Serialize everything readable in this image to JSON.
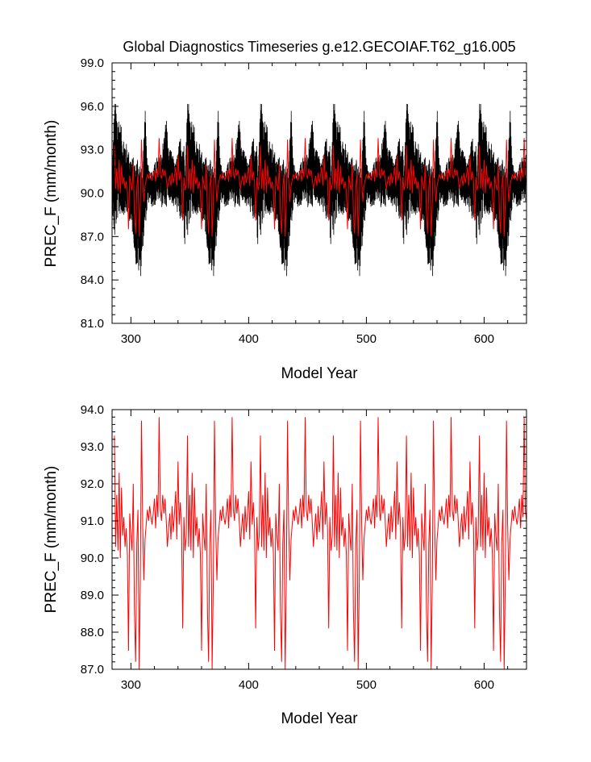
{
  "figure_title": "Global Diagnostics Timeseries g.e12.GECOIAF.T62_g16.005",
  "chart_data": [
    {
      "type": "line",
      "title": "Global Diagnostics Timeseries g.e12.GECOIAF.T62_g16.005",
      "xlabel": "Model Year",
      "ylabel": "PREC_F (mm/month)",
      "xlim": [
        284,
        636
      ],
      "ylim": [
        81.0,
        99.0
      ],
      "xticks": [
        300,
        400,
        500,
        600
      ],
      "xtick_labels": [
        "300",
        "400",
        "500",
        "600"
      ],
      "yticks": [
        81.0,
        84.0,
        87.0,
        90.0,
        93.0,
        96.0,
        99.0
      ],
      "ytick_labels": [
        "81.0",
        "84.0",
        "87.0",
        "90.0",
        "93.0",
        "96.0",
        "99.0"
      ],
      "grid": false,
      "cycle_years": 62,
      "series": [
        {
          "color": "#000000",
          "resolution": "monthly",
          "x": [
            284,
            286,
            288,
            290,
            292,
            294,
            296,
            298,
            300,
            302,
            304,
            306,
            308,
            310,
            312,
            314,
            316,
            318,
            320,
            322,
            324,
            326,
            328,
            330,
            332,
            334,
            336,
            338,
            340,
            342,
            344,
            346
          ],
          "upper": [
            91.5,
            96.5,
            96.0,
            95.5,
            94.5,
            94.0,
            93.5,
            93.0,
            92.5,
            92.5,
            92.0,
            93.0,
            92.0,
            91.5,
            96.0,
            92.5,
            91.5,
            91.5,
            92.0,
            92.5,
            92.5,
            93.0,
            94.0,
            95.5,
            93.0,
            93.0,
            92.5,
            92.0,
            93.0,
            94.0,
            94.0,
            93.0
          ],
          "lower": [
            89.0,
            86.5,
            88.0,
            88.5,
            88.5,
            88.5,
            88.5,
            88.5,
            87.5,
            87.0,
            85.0,
            84.5,
            84.0,
            86.0,
            87.5,
            89.0,
            89.5,
            89.0,
            89.0,
            89.5,
            89.5,
            89.0,
            89.0,
            89.0,
            89.5,
            89.5,
            89.0,
            89.0,
            88.5,
            88.0,
            88.0,
            86.0
          ],
          "mean": [
            90.3,
            91.4,
            91.2,
            91.0,
            90.9,
            90.8,
            90.7,
            90.6,
            90.3,
            90.0,
            89.4,
            89.0,
            88.6,
            89.2,
            90.4,
            90.6,
            90.6,
            90.5,
            90.6,
            90.8,
            90.8,
            90.9,
            91.2,
            91.5,
            91.2,
            91.1,
            90.9,
            90.8,
            90.8,
            90.9,
            91.0,
            90.1
          ]
        },
        {
          "color": "#ff0000",
          "resolution": "annual",
          "x": [
            286,
            287,
            288,
            289,
            290,
            291,
            292,
            293,
            294,
            295,
            296,
            297,
            298,
            299,
            300,
            301,
            302,
            303,
            304,
            305,
            306,
            307,
            308,
            309,
            310,
            311,
            312,
            313,
            314,
            315,
            316,
            317,
            318,
            319,
            320,
            321,
            322,
            323,
            324,
            325,
            326,
            327,
            328,
            329,
            330,
            331,
            332,
            333,
            334,
            335,
            336,
            337,
            338,
            339,
            340,
            341,
            342,
            343,
            344,
            345,
            346,
            347
          ],
          "values": [
            93.3,
            90.3,
            91.7,
            90.2,
            92.3,
            90.0,
            91.9,
            90.6,
            91.1,
            90.3,
            90.8,
            90.1,
            87.5,
            91.2,
            90.6,
            90.2,
            92.0,
            88.6,
            87.2,
            90.4,
            91.3,
            87.0,
            89.4,
            93.7,
            90.9,
            89.4,
            90.5,
            90.9,
            91.3,
            91.0,
            91.4,
            91.1,
            90.9,
            91.2,
            91.6,
            90.8,
            91.7,
            91.1,
            93.8,
            91.3,
            91.0,
            91.7,
            91.2,
            91.6,
            91.0,
            90.3,
            90.8,
            91.2,
            90.5,
            91.4,
            90.7,
            91.2,
            91.8,
            90.5,
            92.6,
            90.9,
            91.5,
            90.8,
            88.1,
            91.1,
            90.2,
            90.6
          ]
        }
      ]
    },
    {
      "type": "line",
      "xlabel": "Model Year",
      "ylabel": "PREC_F (mm/month)",
      "xlim": [
        284,
        636
      ],
      "ylim": [
        87.0,
        94.0
      ],
      "xticks": [
        300,
        400,
        500,
        600
      ],
      "xtick_labels": [
        "300",
        "400",
        "500",
        "600"
      ],
      "yticks": [
        87.0,
        88.0,
        89.0,
        90.0,
        91.0,
        92.0,
        93.0,
        94.0
      ],
      "ytick_labels": [
        "87.0",
        "88.0",
        "89.0",
        "90.0",
        "91.0",
        "92.0",
        "93.0",
        "94.0"
      ],
      "grid": false,
      "cycle_years": 62,
      "series": [
        {
          "color": "#ff0000",
          "resolution": "annual",
          "x": [
            286,
            287,
            288,
            289,
            290,
            291,
            292,
            293,
            294,
            295,
            296,
            297,
            298,
            299,
            300,
            301,
            302,
            303,
            304,
            305,
            306,
            307,
            308,
            309,
            310,
            311,
            312,
            313,
            314,
            315,
            316,
            317,
            318,
            319,
            320,
            321,
            322,
            323,
            324,
            325,
            326,
            327,
            328,
            329,
            330,
            331,
            332,
            333,
            334,
            335,
            336,
            337,
            338,
            339,
            340,
            341,
            342,
            343,
            344,
            345,
            346,
            347
          ],
          "values": [
            93.3,
            90.3,
            91.7,
            90.2,
            92.3,
            90.0,
            91.9,
            90.6,
            91.1,
            90.3,
            90.8,
            90.1,
            87.5,
            91.2,
            90.6,
            90.2,
            92.0,
            88.6,
            87.2,
            90.4,
            91.3,
            87.0,
            89.4,
            93.7,
            90.9,
            89.4,
            90.5,
            90.9,
            91.3,
            91.0,
            91.4,
            91.1,
            90.9,
            91.2,
            91.6,
            90.8,
            91.7,
            91.1,
            93.8,
            91.3,
            91.0,
            91.7,
            91.2,
            91.6,
            91.0,
            90.3,
            90.8,
            91.2,
            90.5,
            91.4,
            90.7,
            91.2,
            91.8,
            90.5,
            92.6,
            90.9,
            91.5,
            90.8,
            88.1,
            91.1,
            90.2,
            90.6
          ]
        }
      ]
    }
  ]
}
